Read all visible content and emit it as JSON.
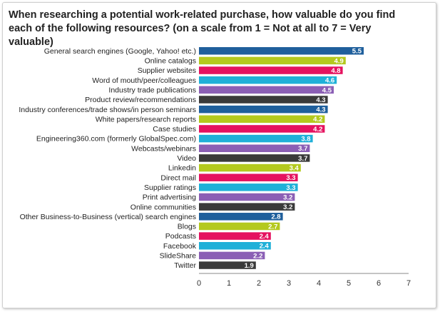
{
  "chart_data": {
    "type": "bar",
    "orientation": "horizontal",
    "title_lines": [
      "When researching a potential work-related purchase, how valuable do you find",
      "each of the following resources? (on a scale from 1 = Not at all to 7 = Very valuable)"
    ],
    "categories": [
      "General search engines (Google, Yahoo! etc.)",
      "Online catalogs",
      "Supplier websites",
      "Word of mouth/peer/colleagues",
      "Industry trade publications",
      "Product review/recommendations",
      "Industry conferences/trade shows/in person seminars",
      "White papers/research reports",
      "Case studies",
      "Engineering360.com (formerly GlobalSpec.com)",
      "Webcasts/webinars",
      "Video",
      "Linkedin",
      "Direct mail",
      "Supplier ratings",
      "Print advertising",
      "Online communities",
      "Other Business-to-Business (vertical) search engines",
      "Blogs",
      "Podcasts",
      "Facebook",
      "SlideShare",
      "Twitter"
    ],
    "values": [
      5.5,
      4.9,
      4.8,
      4.6,
      4.5,
      4.3,
      4.3,
      4.2,
      4.2,
      3.8,
      3.7,
      3.7,
      3.4,
      3.3,
      3.3,
      3.2,
      3.2,
      2.8,
      2.7,
      2.4,
      2.4,
      2.2,
      1.9
    ],
    "value_labels": [
      "5.5",
      "4.9",
      "4.8",
      "4.6",
      "4.5",
      "4.3",
      "4.3",
      "4.2",
      "4.2",
      "3.8",
      "3.7",
      "3.7",
      "3.4",
      "3.3",
      "3.3",
      "3.2",
      "3.2",
      "2.8",
      "2.7",
      "2.4",
      "2.4",
      "2.2",
      "1.9"
    ],
    "bar_colors": [
      "#1f5f9c",
      "#b4c91e",
      "#e5125f",
      "#1fb0d8",
      "#8b5fb5",
      "#3a3a3a",
      "#1f5f9c",
      "#b4c91e",
      "#e5125f",
      "#1fb0d8",
      "#8b5fb5",
      "#3a3a3a",
      "#b4c91e",
      "#e5125f",
      "#1fb0d8",
      "#8b5fb5",
      "#3a3a3a",
      "#1f5f9c",
      "#b4c91e",
      "#e5125f",
      "#1fb0d8",
      "#8b5fb5",
      "#3a3a3a"
    ],
    "xlim": [
      0,
      7
    ],
    "xticks": [
      "0",
      "1",
      "2",
      "3",
      "4",
      "5",
      "6",
      "7"
    ],
    "grid": false,
    "legend": "none"
  }
}
